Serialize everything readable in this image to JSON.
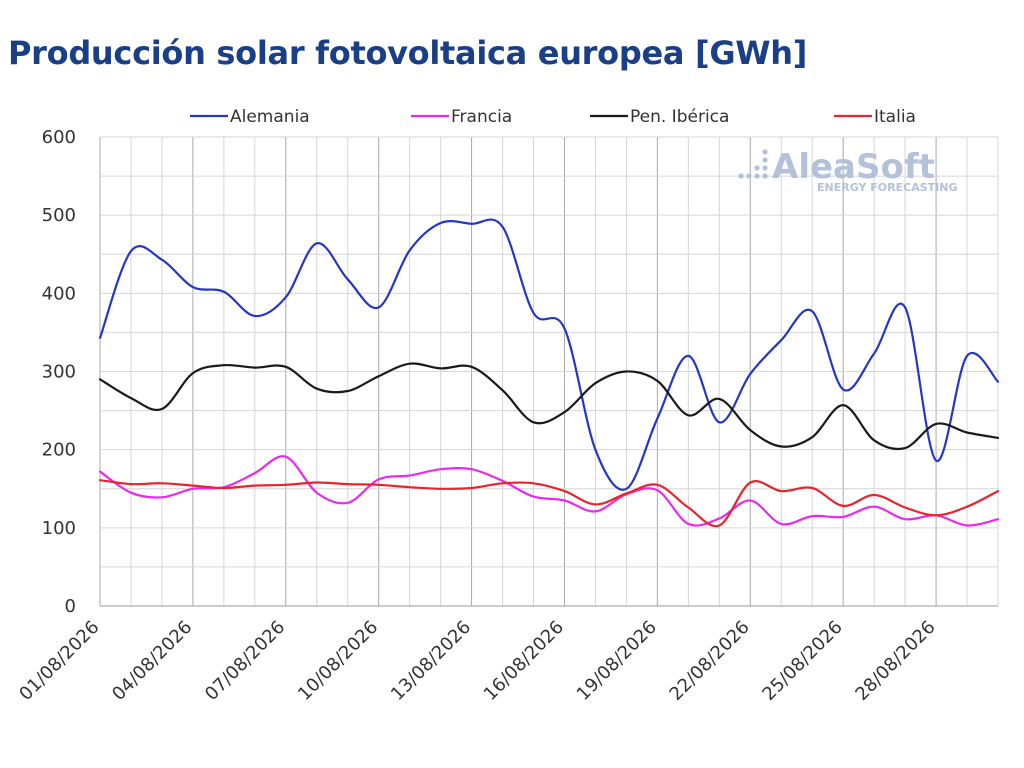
{
  "chart_data": {
    "type": "line",
    "title": "Producción solar fotovoltaica europea [GWh]",
    "xlabel": "",
    "ylabel": "",
    "ylim": [
      0,
      600
    ],
    "yticks": [
      0,
      100,
      200,
      300,
      400,
      500,
      600
    ],
    "grid": true,
    "legend_position": "top",
    "x": [
      "01/08/2026",
      "02/08/2026",
      "03/08/2026",
      "04/08/2026",
      "05/08/2026",
      "06/08/2026",
      "07/08/2026",
      "08/08/2026",
      "09/08/2026",
      "10/08/2026",
      "11/08/2026",
      "12/08/2026",
      "13/08/2026",
      "14/08/2026",
      "15/08/2026",
      "16/08/2026",
      "17/08/2026",
      "18/08/2026",
      "19/08/2026",
      "20/08/2026",
      "21/08/2026",
      "22/08/2026",
      "23/08/2026",
      "24/08/2026",
      "25/08/2026",
      "26/08/2026",
      "27/08/2026",
      "28/08/2026",
      "29/08/2026",
      "30/08/2026"
    ],
    "xtick_labels": [
      "01/08/2026",
      "04/08/2026",
      "07/08/2026",
      "10/08/2026",
      "13/08/2026",
      "16/08/2026",
      "19/08/2026",
      "22/08/2026",
      "25/08/2026",
      "28/08/2026"
    ],
    "series": [
      {
        "name": "Alemania",
        "color": "#2436c8",
        "values": [
          343,
          454,
          443,
          408,
          402,
          371,
          395,
          464,
          418,
          382,
          455,
          490,
          489,
          485,
          375,
          355,
          200,
          150,
          240,
          320,
          235,
          297,
          340,
          377,
          277,
          323,
          382,
          186,
          320,
          287
        ]
      },
      {
        "name": "Francia",
        "color": "#ea29f0",
        "values": [
          172,
          145,
          139,
          150,
          152,
          170,
          191,
          145,
          132,
          162,
          167,
          175,
          175,
          160,
          140,
          135,
          121,
          143,
          148,
          105,
          112,
          135,
          105,
          115,
          114,
          127,
          111,
          116,
          103,
          111
        ]
      },
      {
        "name": "Pen. Ibérica",
        "color": "#1a1a1a",
        "values": [
          290,
          266,
          252,
          298,
          308,
          305,
          306,
          278,
          275,
          294,
          310,
          304,
          306,
          276,
          235,
          248,
          285,
          300,
          288,
          244,
          265,
          225,
          204,
          216,
          257,
          212,
          202,
          233,
          222,
          215
        ]
      },
      {
        "name": "Italia",
        "color": "#e8242c",
        "values": [
          161,
          156,
          157,
          154,
          151,
          154,
          155,
          158,
          156,
          155,
          152,
          150,
          151,
          157,
          157,
          147,
          130,
          144,
          155,
          126,
          103,
          158,
          147,
          151,
          128,
          142,
          126,
          116,
          127,
          147
        ]
      }
    ]
  },
  "watermark": {
    "brand": "AleaSoft",
    "tagline": "ENERGY FORECASTING"
  }
}
